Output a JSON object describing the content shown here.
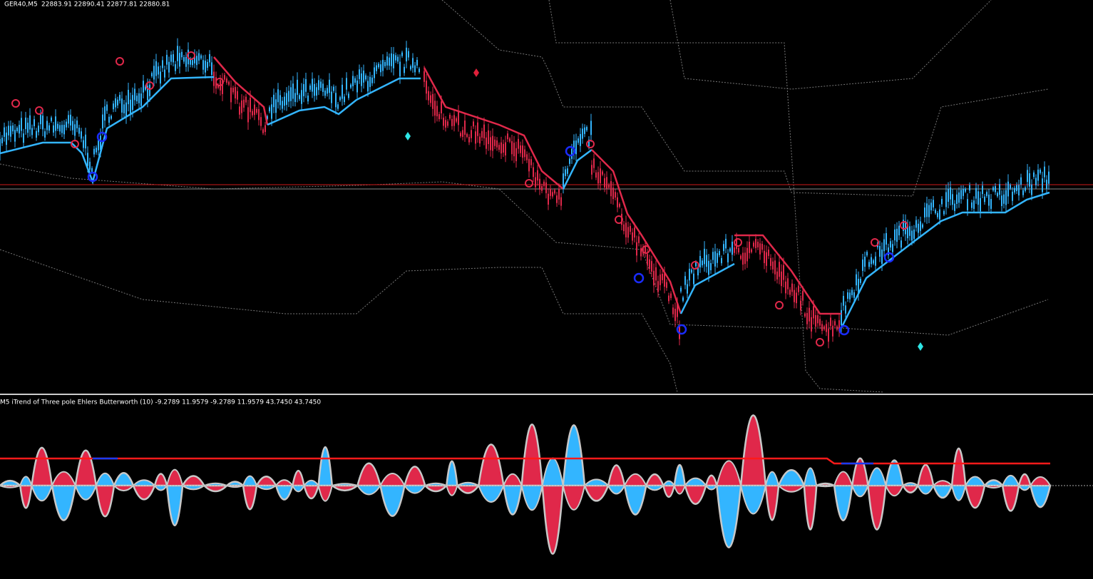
{
  "header": {
    "symbol": "GER40,M5",
    "ohlc": "22883.91 22890.41 22877.81 22880.81"
  },
  "indicator": {
    "label": "M5 iTrend of Three pole Ehlers Butterworth (10) -9.2789 11.9579 -9.2789 11.9579 43.7450 43.7450"
  }
}
